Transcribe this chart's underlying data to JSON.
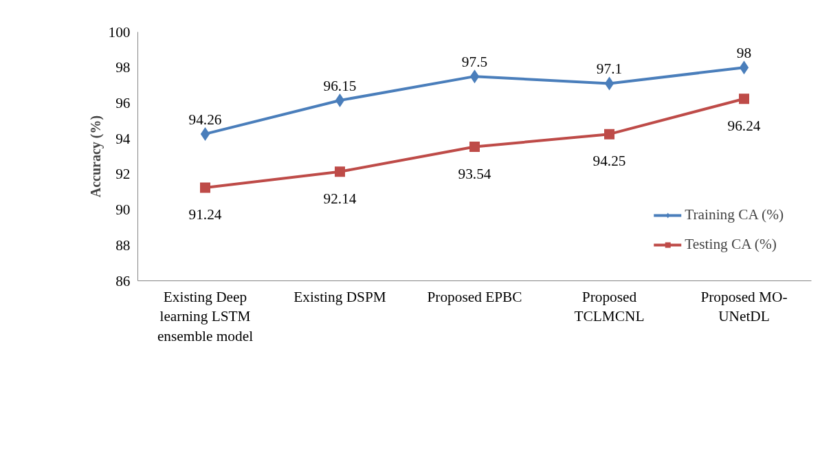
{
  "chart_data": {
    "type": "line",
    "ylabel": "Accuracy (%)",
    "categories": [
      "Existing Deep learning LSTM ensemble model",
      "Existing DSPM",
      "Proposed EPBC",
      "Proposed TCLMCNL",
      "Proposed MO-UNetDL"
    ],
    "series": [
      {
        "name": "Training CA (%)",
        "color": "#4a7ebb",
        "marker": "diamond",
        "values": [
          94.26,
          96.15,
          97.5,
          97.1,
          98
        ],
        "value_labels": [
          "94.26",
          "96.15",
          "97.5",
          "97.1",
          "98"
        ]
      },
      {
        "name": "Testing CA (%)",
        "color": "#be4b48",
        "marker": "square",
        "values": [
          91.24,
          92.14,
          93.54,
          94.25,
          96.24
        ],
        "value_labels": [
          "91.24",
          "92.14",
          "93.54",
          "94.25",
          "96.24"
        ]
      }
    ],
    "ylim": [
      86,
      100
    ],
    "yticks": [
      86,
      88,
      90,
      92,
      94,
      96,
      98,
      100
    ],
    "grid": false,
    "legend": "bottom right",
    "line_style": "solid"
  }
}
